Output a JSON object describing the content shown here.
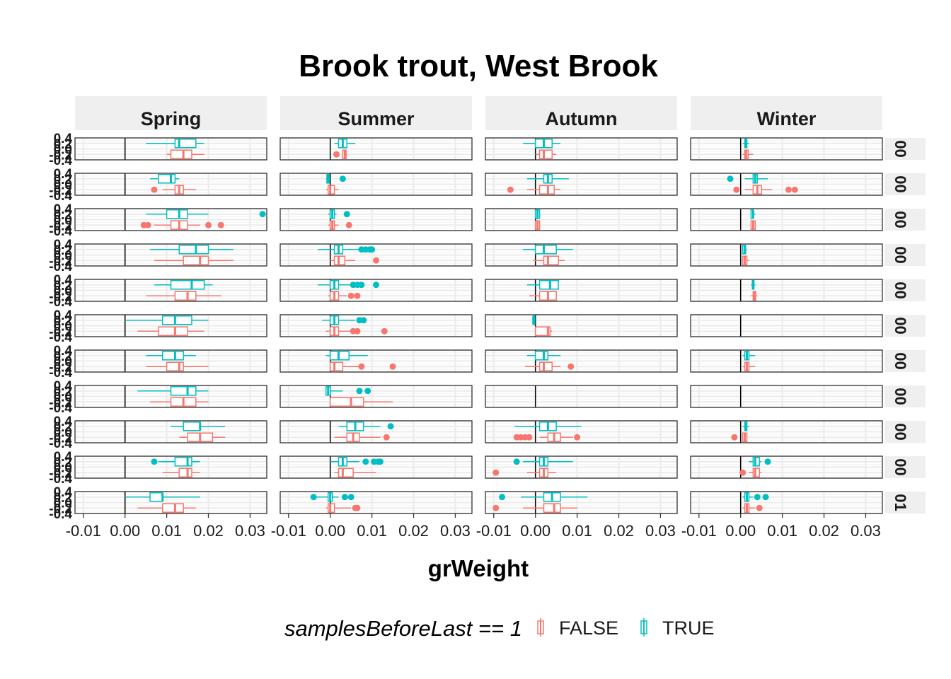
{
  "chart_data": {
    "type": "box",
    "title": "Brook trout, West Brook",
    "xlabel": "grWeight",
    "ylabel": "",
    "xlim": [
      -0.012,
      0.034
    ],
    "ylim": [
      -0.4,
      0.4
    ],
    "x_ticks": [
      -0.01,
      0.0,
      0.01,
      0.02,
      0.03
    ],
    "x_tick_labels": [
      "-0.01",
      "0.00",
      "0.01",
      "0.02",
      "0.03"
    ],
    "y_tick_labels": [
      "-0.4",
      "-0.2",
      "0.0",
      "0.2",
      "0.4"
    ],
    "vline_x": 0,
    "grid": true,
    "facet_cols": [
      "Spring",
      "Summer",
      "Autumn",
      "Winter"
    ],
    "facet_rows": [
      "00",
      "00",
      "00",
      "00",
      "00",
      "00",
      "00",
      "00",
      "00",
      "00",
      "01"
    ],
    "colors": {
      "FALSE": "#F8766D",
      "TRUE": "#00BFC4"
    },
    "legend": {
      "title": "samplesBeforeLast == 1",
      "position": "bottom",
      "entries": [
        "FALSE",
        "TRUE"
      ]
    },
    "panels": [
      [
        {
          "T": {
            "min": 0.005,
            "q1": 0.012,
            "med": 0.013,
            "q3": 0.017,
            "max": 0.019,
            "out": []
          },
          "F": {
            "min": 0.01,
            "q1": 0.011,
            "med": 0.014,
            "q3": 0.016,
            "max": 0.019,
            "out": []
          }
        },
        {
          "T": {
            "min": 0.006,
            "q1": 0.008,
            "med": 0.011,
            "q3": 0.012,
            "max": 0.013,
            "out": []
          },
          "F": {
            "min": 0.009,
            "q1": 0.012,
            "med": 0.013,
            "q3": 0.014,
            "max": 0.017,
            "out": [
              0.007
            ]
          }
        },
        {
          "T": {
            "min": 0.005,
            "q1": 0.01,
            "med": 0.013,
            "q3": 0.015,
            "max": 0.02,
            "out": [
              0.033
            ]
          },
          "F": {
            "min": 0.007,
            "q1": 0.011,
            "med": 0.013,
            "q3": 0.015,
            "max": 0.018,
            "out": [
              0.0045,
              0.0055,
              0.02,
              0.023
            ]
          }
        },
        {
          "T": {
            "min": 0.006,
            "q1": 0.013,
            "med": 0.017,
            "q3": 0.02,
            "max": 0.026,
            "out": []
          },
          "F": {
            "min": 0.007,
            "q1": 0.014,
            "med": 0.018,
            "q3": 0.02,
            "max": 0.026,
            "out": []
          }
        },
        {
          "T": {
            "min": 0.007,
            "q1": 0.011,
            "med": 0.016,
            "q3": 0.019,
            "max": 0.021,
            "out": []
          },
          "F": {
            "min": 0.005,
            "q1": 0.012,
            "med": 0.015,
            "q3": 0.017,
            "max": 0.023,
            "out": []
          }
        },
        {
          "T": {
            "min": 0.0,
            "q1": 0.009,
            "med": 0.012,
            "q3": 0.016,
            "max": 0.02,
            "out": []
          },
          "F": {
            "min": 0.003,
            "q1": 0.008,
            "med": 0.012,
            "q3": 0.015,
            "max": 0.019,
            "out": []
          }
        },
        {
          "T": {
            "min": 0.005,
            "q1": 0.009,
            "med": 0.012,
            "q3": 0.014,
            "max": 0.017,
            "out": []
          },
          "F": {
            "min": 0.005,
            "q1": 0.01,
            "med": 0.013,
            "q3": 0.014,
            "max": 0.02,
            "out": []
          }
        },
        {
          "T": {
            "min": 0.003,
            "q1": 0.011,
            "med": 0.015,
            "q3": 0.017,
            "max": 0.02,
            "out": []
          },
          "F": {
            "min": 0.006,
            "q1": 0.011,
            "med": 0.014,
            "q3": 0.017,
            "max": 0.02,
            "out": []
          }
        },
        {
          "T": {
            "min": 0.011,
            "q1": 0.014,
            "med": 0.018,
            "q3": 0.018,
            "max": 0.024,
            "out": []
          },
          "F": {
            "min": 0.013,
            "q1": 0.015,
            "med": 0.018,
            "q3": 0.021,
            "max": 0.024,
            "out": []
          }
        },
        {
          "T": {
            "min": 0.008,
            "q1": 0.012,
            "med": 0.015,
            "q3": 0.016,
            "max": 0.018,
            "out": [
              0.007
            ]
          },
          "F": {
            "min": 0.009,
            "q1": 0.013,
            "med": 0.015,
            "q3": 0.016,
            "max": 0.018,
            "out": []
          }
        },
        {
          "T": {
            "min": 0.0,
            "q1": 0.006,
            "med": 0.009,
            "q3": 0.009,
            "max": 0.018,
            "out": []
          },
          "F": {
            "min": 0.003,
            "q1": 0.009,
            "med": 0.012,
            "q3": 0.014,
            "max": 0.017,
            "out": []
          }
        }
      ],
      [
        {
          "T": {
            "min": 0.001,
            "q1": 0.002,
            "med": 0.003,
            "q3": 0.004,
            "max": 0.006,
            "out": []
          },
          "F": {
            "min": 0.003,
            "q1": 0.003,
            "med": 0.0035,
            "q3": 0.0038,
            "max": 0.004,
            "out": [
              0.0015
            ]
          }
        },
        {
          "T": {
            "min": -0.001,
            "q1": -0.0008,
            "med": -0.0005,
            "q3": -0.0002,
            "max": 0.0,
            "out": [
              0.003
            ]
          },
          "F": {
            "min": -0.001,
            "q1": -0.0005,
            "med": 0.0,
            "q3": 0.001,
            "max": 0.002,
            "out": []
          }
        },
        {
          "T": {
            "min": -0.0005,
            "q1": 0.0,
            "med": 0.0005,
            "q3": 0.001,
            "max": 0.0015,
            "out": [
              0.004
            ]
          },
          "F": {
            "min": -0.0005,
            "q1": 0.0,
            "med": 0.0005,
            "q3": 0.001,
            "max": 0.002,
            "out": [
              0.0045
            ]
          }
        },
        {
          "T": {
            "min": -0.003,
            "q1": 0.001,
            "med": 0.002,
            "q3": 0.003,
            "max": 0.007,
            "out": [
              0.0075,
              0.0085,
              0.0095,
              0.01
            ]
          },
          "F": {
            "min": 0.0,
            "q1": 0.001,
            "med": 0.002,
            "q3": 0.0035,
            "max": 0.006,
            "out": [
              0.011
            ]
          }
        },
        {
          "T": {
            "min": -0.003,
            "q1": 0.0,
            "med": 0.001,
            "q3": 0.002,
            "max": 0.005,
            "out": [
              0.0055,
              0.0065,
              0.0075,
              0.011
            ]
          },
          "F": {
            "min": -0.0005,
            "q1": 0.0,
            "med": 0.001,
            "q3": 0.002,
            "max": 0.004,
            "out": [
              0.005,
              0.0065
            ]
          }
        },
        {
          "T": {
            "min": -0.002,
            "q1": 0.0,
            "med": 0.001,
            "q3": 0.002,
            "max": 0.006,
            "out": [
              0.007,
              0.008
            ]
          },
          "F": {
            "min": -0.001,
            "q1": 0.0,
            "med": 0.001,
            "q3": 0.002,
            "max": 0.005,
            "out": [
              0.0055,
              0.0065,
              0.013
            ]
          }
        },
        {
          "T": {
            "min": -0.001,
            "q1": 0.0,
            "med": 0.002,
            "q3": 0.0045,
            "max": 0.009,
            "out": []
          },
          "F": {
            "min": 0.0,
            "q1": 0.0,
            "med": 0.001,
            "q3": 0.003,
            "max": 0.007,
            "out": [
              0.0075,
              0.015
            ]
          }
        },
        {
          "T": {
            "min": -0.001,
            "q1": -0.001,
            "med": -0.0005,
            "q3": 0.0,
            "max": 0.003,
            "out": [
              0.007,
              0.009
            ]
          },
          "F": {
            "min": 0.0,
            "q1": 0.0,
            "med": 0.005,
            "q3": 0.008,
            "max": 0.015,
            "out": []
          }
        },
        {
          "T": {
            "min": 0.002,
            "q1": 0.004,
            "med": 0.006,
            "q3": 0.008,
            "max": 0.012,
            "out": [
              0.0145
            ]
          },
          "F": {
            "min": 0.001,
            "q1": 0.004,
            "med": 0.0055,
            "q3": 0.007,
            "max": 0.012,
            "out": [
              0.0135
            ]
          }
        },
        {
          "T": {
            "min": 0.0,
            "q1": 0.002,
            "med": 0.003,
            "q3": 0.004,
            "max": 0.007,
            "out": [
              0.0085,
              0.0105,
              0.0115,
              0.012
            ]
          },
          "F": {
            "min": 0.001,
            "q1": 0.002,
            "med": 0.003,
            "q3": 0.0055,
            "max": 0.011,
            "out": []
          }
        },
        {
          "T": {
            "min": -0.0035,
            "q1": -0.0005,
            "med": 0.0,
            "q3": 0.0005,
            "max": 0.002,
            "out": [
              -0.004,
              0.0035,
              0.005
            ]
          },
          "F": {
            "min": -0.001,
            "q1": -0.0005,
            "med": 0.0,
            "q3": 0.001,
            "max": 0.005,
            "out": [
              0.006,
              0.0065
            ]
          }
        }
      ],
      [
        {
          "T": {
            "min": -0.003,
            "q1": 0.0,
            "med": 0.002,
            "q3": 0.004,
            "max": 0.006,
            "out": []
          },
          "F": {
            "min": 0.0,
            "q1": 0.001,
            "med": 0.002,
            "q3": 0.004,
            "max": 0.005,
            "out": []
          }
        },
        {
          "T": {
            "min": -0.002,
            "q1": 0.002,
            "med": 0.003,
            "q3": 0.004,
            "max": 0.008,
            "out": []
          },
          "F": {
            "min": -0.002,
            "q1": 0.001,
            "med": 0.003,
            "q3": 0.0045,
            "max": 0.006,
            "out": [
              -0.006
            ]
          }
        },
        {
          "T": {
            "min": 0.0,
            "q1": 0.0,
            "med": 0.0005,
            "q3": 0.001,
            "max": 0.001,
            "out": []
          },
          "F": {
            "min": 0.0,
            "q1": 0.0,
            "med": 0.0005,
            "q3": 0.001,
            "max": 0.001,
            "out": []
          }
        },
        {
          "T": {
            "min": -0.003,
            "q1": 0.0,
            "med": 0.002,
            "q3": 0.005,
            "max": 0.009,
            "out": []
          },
          "F": {
            "min": -0.0005,
            "q1": 0.002,
            "med": 0.003,
            "q3": 0.0055,
            "max": 0.007,
            "out": []
          }
        },
        {
          "T": {
            "min": -0.002,
            "q1": 0.001,
            "med": 0.0035,
            "q3": 0.0055,
            "max": 0.0055,
            "out": []
          },
          "F": {
            "min": -0.0015,
            "q1": 0.001,
            "med": 0.003,
            "q3": 0.005,
            "max": 0.005,
            "out": []
          }
        },
        {
          "T": {
            "min": -0.0005,
            "q1": -0.0005,
            "med": -0.0005,
            "q3": -0.0005,
            "max": -0.0005,
            "out": []
          },
          "F": {
            "min": 0.0,
            "q1": 0.0,
            "med": 0.003,
            "q3": 0.0035,
            "max": 0.004,
            "out": []
          }
        },
        {
          "T": {
            "min": -0.002,
            "q1": 0.0,
            "med": 0.002,
            "q3": 0.003,
            "max": 0.006,
            "out": []
          },
          "F": {
            "min": -0.0025,
            "q1": 0.001,
            "med": 0.002,
            "q3": 0.004,
            "max": 0.006,
            "out": [
              0.0085
            ]
          }
        },
        {
          "T": null,
          "F": null
        },
        {
          "T": {
            "min": -0.005,
            "q1": 0.001,
            "med": 0.003,
            "q3": 0.005,
            "max": 0.011,
            "out": []
          },
          "F": {
            "min": 0.001,
            "q1": 0.003,
            "med": 0.0045,
            "q3": 0.006,
            "max": 0.009,
            "out": [
              -0.0045,
              -0.0035,
              -0.0025,
              -0.0015,
              0.01
            ]
          }
        },
        {
          "T": {
            "min": -0.003,
            "q1": 0.001,
            "med": 0.002,
            "q3": 0.003,
            "max": 0.009,
            "out": [
              -0.0045
            ]
          },
          "F": {
            "min": -0.002,
            "q1": 0.001,
            "med": 0.002,
            "q3": 0.003,
            "max": 0.005,
            "out": [
              -0.0095
            ]
          }
        },
        {
          "T": {
            "min": -0.0035,
            "q1": 0.002,
            "med": 0.004,
            "q3": 0.006,
            "max": 0.0125,
            "out": [
              -0.008
            ]
          },
          "F": {
            "min": -0.003,
            "q1": 0.002,
            "med": 0.0045,
            "q3": 0.006,
            "max": 0.01,
            "out": [
              -0.0095
            ]
          }
        }
      ],
      [
        {
          "T": {
            "min": 0.0005,
            "q1": 0.001,
            "med": 0.0012,
            "q3": 0.0015,
            "max": 0.002,
            "out": []
          },
          "F": {
            "min": 0.0005,
            "q1": 0.001,
            "med": 0.0013,
            "q3": 0.0018,
            "max": 0.003,
            "out": []
          }
        },
        {
          "T": {
            "min": 0.001,
            "q1": 0.003,
            "med": 0.0035,
            "q3": 0.004,
            "max": 0.0065,
            "out": [
              -0.0025
            ]
          },
          "F": {
            "min": 0.001,
            "q1": 0.003,
            "med": 0.004,
            "q3": 0.005,
            "max": 0.0075,
            "out": [
              -0.001,
              0.0115,
              0.013
            ]
          }
        },
        {
          "T": {
            "min": 0.0025,
            "q1": 0.0025,
            "med": 0.003,
            "q3": 0.003,
            "max": 0.0035,
            "out": []
          },
          "F": {
            "min": 0.0025,
            "q1": 0.0025,
            "med": 0.003,
            "q3": 0.0035,
            "max": 0.0035,
            "out": []
          }
        },
        {
          "T": {
            "min": 0.0005,
            "q1": 0.0005,
            "med": 0.001,
            "q3": 0.0012,
            "max": 0.0015,
            "out": []
          },
          "F": {
            "min": 0.0005,
            "q1": 0.0005,
            "med": 0.001,
            "q3": 0.0015,
            "max": 0.002,
            "out": []
          }
        },
        {
          "T": {
            "min": 0.0025,
            "q1": 0.0028,
            "med": 0.003,
            "q3": 0.0032,
            "max": 0.0035,
            "out": []
          },
          "F": {
            "min": 0.0025,
            "q1": 0.003,
            "med": 0.0033,
            "q3": 0.0036,
            "max": 0.004,
            "out": []
          }
        },
        {
          "T": null,
          "F": null
        },
        {
          "T": {
            "min": 0.0005,
            "q1": 0.001,
            "med": 0.0015,
            "q3": 0.002,
            "max": 0.0035,
            "out": []
          },
          "F": {
            "min": 0.0005,
            "q1": 0.001,
            "med": 0.0015,
            "q3": 0.002,
            "max": 0.0035,
            "out": []
          }
        },
        {
          "T": null,
          "F": null
        },
        {
          "T": {
            "min": 0.0005,
            "q1": 0.001,
            "med": 0.0012,
            "q3": 0.0015,
            "max": 0.002,
            "out": []
          },
          "F": {
            "min": 0.0005,
            "q1": 0.0005,
            "med": 0.001,
            "q3": 0.0015,
            "max": 0.0015,
            "out": [
              -0.0015
            ]
          }
        },
        {
          "T": {
            "min": 0.002,
            "q1": 0.003,
            "med": 0.0035,
            "q3": 0.0045,
            "max": 0.005,
            "out": [
              0.0065
            ]
          },
          "F": {
            "min": 0.002,
            "q1": 0.003,
            "med": 0.0035,
            "q3": 0.0045,
            "max": 0.005,
            "out": [
              0.0005
            ]
          }
        },
        {
          "T": {
            "min": 0.0005,
            "q1": 0.001,
            "med": 0.0015,
            "q3": 0.002,
            "max": 0.003,
            "out": [
              0.004,
              0.006
            ]
          },
          "F": {
            "min": 0.0005,
            "q1": 0.001,
            "med": 0.0015,
            "q3": 0.002,
            "max": 0.0035,
            "out": [
              0.0045
            ]
          }
        }
      ]
    ]
  }
}
